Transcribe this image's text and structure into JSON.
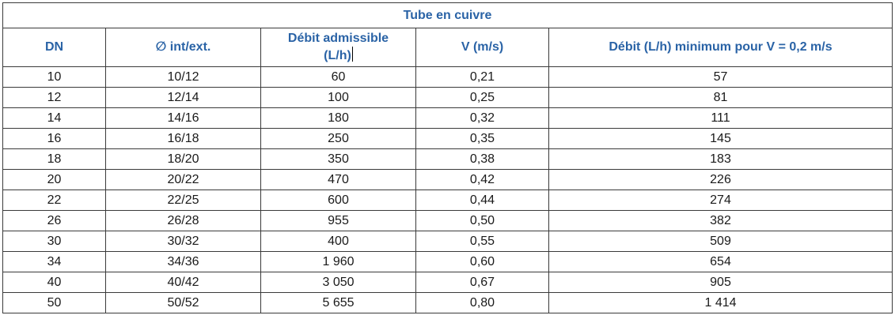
{
  "table": {
    "title": "Tube en cuivre",
    "headers": {
      "dn": "DN",
      "diameter": "∅ int/ext.",
      "flow_line1": "Débit admissible",
      "flow_line2": "(L/h)",
      "velocity": "V (m/s)",
      "min_flow": "Débit (L/h) minimum pour V = 0,2 m/s"
    },
    "rows": [
      {
        "dn": "10",
        "diameter": "10/12",
        "flow": "60",
        "velocity": "0,21",
        "min_flow": "57"
      },
      {
        "dn": "12",
        "diameter": "12/14",
        "flow": "100",
        "velocity": "0,25",
        "min_flow": "81"
      },
      {
        "dn": "14",
        "diameter": "14/16",
        "flow": "180",
        "velocity": "0,32",
        "min_flow": "111"
      },
      {
        "dn": "16",
        "diameter": "16/18",
        "flow": "250",
        "velocity": "0,35",
        "min_flow": "145"
      },
      {
        "dn": "18",
        "diameter": "18/20",
        "flow": "350",
        "velocity": "0,38",
        "min_flow": "183"
      },
      {
        "dn": "20",
        "diameter": "20/22",
        "flow": "470",
        "velocity": "0,42",
        "min_flow": "226"
      },
      {
        "dn": "22",
        "diameter": "22/25",
        "flow": "600",
        "velocity": "0,44",
        "min_flow": "274"
      },
      {
        "dn": "26",
        "diameter": "26/28",
        "flow": "955",
        "velocity": "0,50",
        "min_flow": "382"
      },
      {
        "dn": "30",
        "diameter": "30/32",
        "flow": "400",
        "velocity": "0,55",
        "min_flow": "509"
      },
      {
        "dn": "34",
        "diameter": "34/36",
        "flow": "1 960",
        "velocity": "0,60",
        "min_flow": "654"
      },
      {
        "dn": "40",
        "diameter": "40/42",
        "flow": "3 050",
        "velocity": "0,67",
        "min_flow": "905"
      },
      {
        "dn": "50",
        "diameter": "50/52",
        "flow": "5 655",
        "velocity": "0,80",
        "min_flow": "1 414"
      }
    ],
    "colors": {
      "header_text": "#2a63a6",
      "body_text": "#1a1a1a",
      "border": "#3a3a3a"
    }
  }
}
